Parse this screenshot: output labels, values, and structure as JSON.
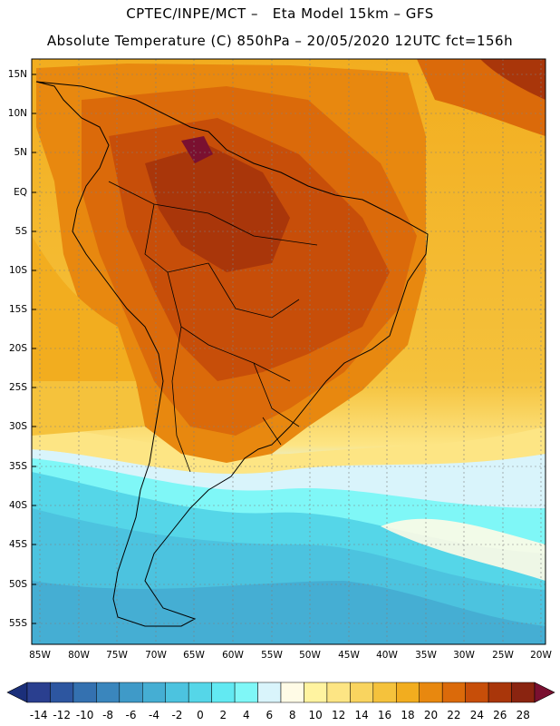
{
  "header": {
    "line1": "CPTEC/INPE/MCT –   Eta Model 15km – GFS",
    "line2": "Absolute Temperature (C) 850hPa – 20/05/2020 12UTC fct=156h"
  },
  "map": {
    "lat_labels": [
      "15N",
      "10N",
      "5N",
      "EQ",
      "5S",
      "10S",
      "15S",
      "20S",
      "25S",
      "30S",
      "35S",
      "40S",
      "45S",
      "50S",
      "55S"
    ],
    "lon_labels": [
      "85W",
      "80W",
      "75W",
      "70W",
      "65W",
      "60W",
      "55W",
      "50W",
      "45W",
      "40W",
      "35W",
      "30W",
      "25W",
      "20W"
    ]
  },
  "colorbar": {
    "labels": [
      "-14",
      "-12",
      "-10",
      "-8",
      "-6",
      "-4",
      "-2",
      "0",
      "2",
      "4",
      "6",
      "8",
      "10",
      "12",
      "14",
      "16",
      "18",
      "20",
      "22",
      "24",
      "26",
      "28"
    ],
    "colors": [
      "#2a3f8f",
      "#2d56a0",
      "#3471b0",
      "#3a86bd",
      "#3f9ac8",
      "#45aed3",
      "#4cc3df",
      "#55d6e8",
      "#62e9f2",
      "#7ff7f7",
      "#d9f4fb",
      "#fffbe6",
      "#fff3a0",
      "#fde584",
      "#f9d45f",
      "#f5c23c",
      "#f2ad1f",
      "#e8880f",
      "#db6a0a",
      "#c74e09",
      "#a9360a",
      "#8a2410"
    ],
    "under_color": "#1b2f7a",
    "over_color": "#7a1030"
  }
}
